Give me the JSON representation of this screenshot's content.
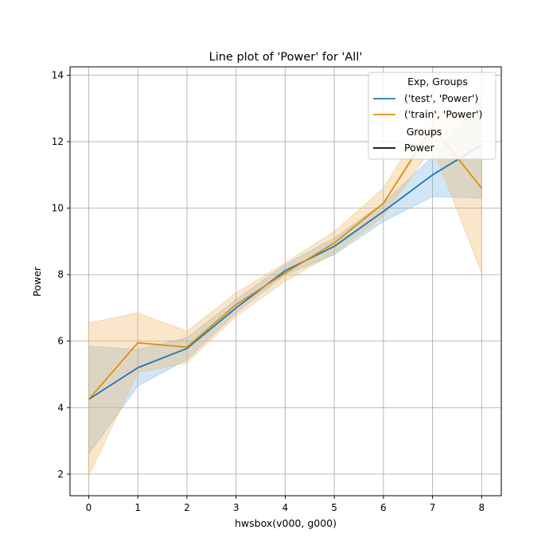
{
  "chart_data": {
    "type": "line",
    "title": "Line plot of 'Power' for 'All'",
    "xlabel": "hwsbox(v000, g000)",
    "ylabel": "Power",
    "x": [
      0,
      1,
      2,
      3,
      4,
      5,
      6,
      7,
      8
    ],
    "xlim": [
      -0.38,
      8.4
    ],
    "ylim": [
      1.35,
      14.25
    ],
    "xticks": [
      "0",
      "1",
      "2",
      "3",
      "4",
      "5",
      "6",
      "7",
      "8"
    ],
    "yticks": [
      "2",
      "4",
      "6",
      "8",
      "10",
      "12",
      "14"
    ],
    "grid": true,
    "legend_position": "top-right",
    "legend": {
      "title1": "Exp, Groups",
      "title2": "Groups",
      "style_entry": "Power"
    },
    "series": [
      {
        "name": "('test', 'Power')",
        "color": "#1f77b4",
        "band_color": "#7fb4e0",
        "values": [
          4.25,
          5.2,
          5.78,
          7.0,
          8.12,
          8.85,
          9.9,
          11.0,
          11.9
        ],
        "lower": [
          2.6,
          4.65,
          5.45,
          6.85,
          8.0,
          8.6,
          9.6,
          10.35,
          10.3
        ],
        "upper": [
          5.85,
          5.75,
          6.1,
          7.25,
          8.3,
          9.1,
          10.15,
          11.55,
          13.3
        ]
      },
      {
        "name": "('train', 'Power')",
        "color": "#de8f05",
        "band_color": "#f0b76b",
        "values": [
          4.25,
          5.95,
          5.82,
          7.1,
          8.05,
          8.95,
          10.15,
          12.45,
          10.6
        ],
        "lower": [
          1.95,
          5.05,
          5.35,
          6.75,
          7.8,
          8.65,
          9.75,
          11.85,
          8.05
        ],
        "upper": [
          6.55,
          6.85,
          6.3,
          7.45,
          8.35,
          9.3,
          10.6,
          13.0,
          13.15
        ]
      }
    ]
  }
}
